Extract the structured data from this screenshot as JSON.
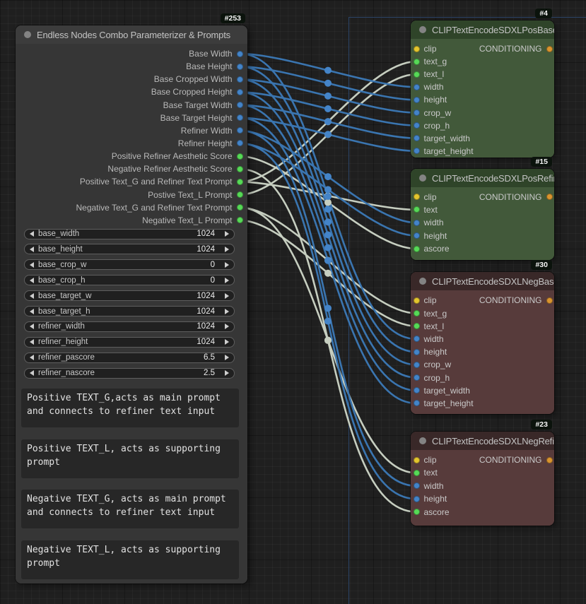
{
  "nodes": {
    "param": {
      "badge": "#253",
      "title": "Endless Nodes Combo Parameterizer & Prompts",
      "color": "gray",
      "outputs": [
        {
          "label": "Base Width",
          "type": "INT"
        },
        {
          "label": "Base Height",
          "type": "INT"
        },
        {
          "label": "Base Cropped Width",
          "type": "INT"
        },
        {
          "label": "Base Cropped Height",
          "type": "INT"
        },
        {
          "label": "Base Target Width",
          "type": "INT"
        },
        {
          "label": "Base Target Height",
          "type": "INT"
        },
        {
          "label": "Refiner Width",
          "type": "INT"
        },
        {
          "label": "Refiner Height",
          "type": "INT"
        },
        {
          "label": "Positive Refiner Aesthetic Score",
          "type": "FLOAT"
        },
        {
          "label": "Negative Refiner Aesthetic Score",
          "type": "FLOAT"
        },
        {
          "label": "Positive Text_G and Refiner Text Prompt",
          "type": "STRING"
        },
        {
          "label": "Postive Text_L Prompt",
          "type": "STRING"
        },
        {
          "label": "Negative Text_G and Refiner Text Prompt",
          "type": "STRING"
        },
        {
          "label": "Negative Text_L Prompt",
          "type": "STRING"
        }
      ],
      "widgets": [
        {
          "name": "base_width",
          "value": "1024"
        },
        {
          "name": "base_height",
          "value": "1024"
        },
        {
          "name": "base_crop_w",
          "value": "0"
        },
        {
          "name": "base_crop_h",
          "value": "0"
        },
        {
          "name": "base_target_w",
          "value": "1024"
        },
        {
          "name": "base_target_h",
          "value": "1024"
        },
        {
          "name": "refiner_width",
          "value": "1024"
        },
        {
          "name": "refiner_height",
          "value": "1024"
        },
        {
          "name": "refiner_pascore",
          "value": "6.5"
        },
        {
          "name": "refiner_nascore",
          "value": "2.5"
        }
      ],
      "textareas": [
        "Positive TEXT_G,acts as main prompt and connects to refiner text input",
        "Positive TEXT_L, acts as supporting prompt",
        "Negative TEXT_G, acts as main prompt and connects to refiner text input",
        "Negative TEXT_L, acts as supporting prompt"
      ]
    },
    "pos_base": {
      "badge": "#4",
      "title": "CLIPTextEncodeSDXLPosBase",
      "color": "green",
      "inputs": [
        {
          "label": "clip",
          "type": "CLIP"
        },
        {
          "label": "text_g",
          "type": "STRING"
        },
        {
          "label": "text_l",
          "type": "STRING"
        },
        {
          "label": "width",
          "type": "INT"
        },
        {
          "label": "height",
          "type": "INT"
        },
        {
          "label": "crop_w",
          "type": "INT"
        },
        {
          "label": "crop_h",
          "type": "INT"
        },
        {
          "label": "target_width",
          "type": "INT"
        },
        {
          "label": "target_height",
          "type": "INT"
        }
      ],
      "outputs": [
        {
          "label": "CONDITIONING",
          "type": "CONDITIONING"
        }
      ]
    },
    "pos_refiner": {
      "badge": "#15",
      "title": "CLIPTextEncodeSDXLPosRefiner",
      "color": "green",
      "inputs": [
        {
          "label": "clip",
          "type": "CLIP"
        },
        {
          "label": "text",
          "type": "STRING"
        },
        {
          "label": "width",
          "type": "INT"
        },
        {
          "label": "height",
          "type": "INT"
        },
        {
          "label": "ascore",
          "type": "FLOAT"
        }
      ],
      "outputs": [
        {
          "label": "CONDITIONING",
          "type": "CONDITIONING"
        }
      ]
    },
    "neg_base": {
      "badge": "#30",
      "title": "CLIPTextEncodeSDXLNegBase",
      "color": "red",
      "inputs": [
        {
          "label": "clip",
          "type": "CLIP"
        },
        {
          "label": "text_g",
          "type": "STRING"
        },
        {
          "label": "text_l",
          "type": "STRING"
        },
        {
          "label": "width",
          "type": "INT"
        },
        {
          "label": "height",
          "type": "INT"
        },
        {
          "label": "crop_w",
          "type": "INT"
        },
        {
          "label": "crop_h",
          "type": "INT"
        },
        {
          "label": "target_width",
          "type": "INT"
        },
        {
          "label": "target_height",
          "type": "INT"
        }
      ],
      "outputs": [
        {
          "label": "CONDITIONING",
          "type": "CONDITIONING"
        }
      ]
    },
    "neg_refiner": {
      "badge": "#23",
      "title": "CLIPTextEncodeSDXLNegRefiner",
      "color": "red",
      "inputs": [
        {
          "label": "clip",
          "type": "CLIP"
        },
        {
          "label": "text",
          "type": "STRING"
        },
        {
          "label": "width",
          "type": "INT"
        },
        {
          "label": "height",
          "type": "INT"
        },
        {
          "label": "ascore",
          "type": "FLOAT"
        }
      ],
      "outputs": [
        {
          "label": "CONDITIONING",
          "type": "CONDITIONING"
        }
      ]
    }
  },
  "links": [
    {
      "from": "Base Width",
      "to": [
        "pos_base",
        "width"
      ],
      "type": "INT"
    },
    {
      "from": "Base Height",
      "to": [
        "pos_base",
        "height"
      ],
      "type": "INT"
    },
    {
      "from": "Base Cropped Width",
      "to": [
        "pos_base",
        "crop_w"
      ],
      "type": "INT"
    },
    {
      "from": "Base Cropped Height",
      "to": [
        "pos_base",
        "crop_h"
      ],
      "type": "INT"
    },
    {
      "from": "Base Target Width",
      "to": [
        "pos_base",
        "target_width"
      ],
      "type": "INT"
    },
    {
      "from": "Base Target Height",
      "to": [
        "pos_base",
        "target_height"
      ],
      "type": "INT"
    },
    {
      "from": "Base Width",
      "to": [
        "neg_base",
        "width"
      ],
      "type": "INT"
    },
    {
      "from": "Base Height",
      "to": [
        "neg_base",
        "height"
      ],
      "type": "INT"
    },
    {
      "from": "Base Cropped Width",
      "to": [
        "neg_base",
        "crop_w"
      ],
      "type": "INT"
    },
    {
      "from": "Base Cropped Height",
      "to": [
        "neg_base",
        "crop_h"
      ],
      "type": "INT"
    },
    {
      "from": "Base Target Width",
      "to": [
        "neg_base",
        "target_width"
      ],
      "type": "INT"
    },
    {
      "from": "Base Target Height",
      "to": [
        "neg_base",
        "target_height"
      ],
      "type": "INT"
    },
    {
      "from": "Refiner Width",
      "to": [
        "pos_refiner",
        "width"
      ],
      "type": "INT"
    },
    {
      "from": "Refiner Height",
      "to": [
        "pos_refiner",
        "height"
      ],
      "type": "INT"
    },
    {
      "from": "Refiner Width",
      "to": [
        "neg_refiner",
        "width"
      ],
      "type": "INT"
    },
    {
      "from": "Refiner Height",
      "to": [
        "neg_refiner",
        "height"
      ],
      "type": "INT"
    },
    {
      "from": "Positive Refiner Aesthetic Score",
      "to": [
        "pos_refiner",
        "ascore"
      ],
      "type": "FLOAT"
    },
    {
      "from": "Negative Refiner Aesthetic Score",
      "to": [
        "neg_refiner",
        "ascore"
      ],
      "type": "FLOAT"
    },
    {
      "from": "Positive Text_G and Refiner Text Prompt",
      "to": [
        "pos_base",
        "text_g"
      ],
      "type": "STRING"
    },
    {
      "from": "Positive Text_G and Refiner Text Prompt",
      "to": [
        "pos_refiner",
        "text"
      ],
      "type": "STRING"
    },
    {
      "from": "Postive Text_L Prompt",
      "to": [
        "pos_base",
        "text_l"
      ],
      "type": "STRING"
    },
    {
      "from": "Negative Text_G and Refiner Text Prompt",
      "to": [
        "neg_base",
        "text_g"
      ],
      "type": "STRING"
    },
    {
      "from": "Negative Text_G and Refiner Text Prompt",
      "to": [
        "neg_refiner",
        "text"
      ],
      "type": "STRING"
    },
    {
      "from": "Negative Text_L Prompt",
      "to": [
        "neg_base",
        "text_l"
      ],
      "type": "STRING"
    }
  ],
  "colors": {
    "nodes": {
      "gray": {
        "header": "#3c3c3c",
        "body": "#363636"
      },
      "green": {
        "header": "#2f4429",
        "body": "#42593a"
      },
      "red": {
        "header": "#392828",
        "body": "#573b3b"
      }
    },
    "ports": {
      "INT": "#4484c8",
      "FLOAT": "#57d957",
      "STRING": "#57d957",
      "CLIP": "#e3c52e",
      "CONDITIONING": "#d9942e"
    },
    "wires": {
      "INT": "#3a75b0",
      "FLOAT": "#c6cec0",
      "STRING": "#c6cec0"
    },
    "group_outline": "#2b4468"
  }
}
